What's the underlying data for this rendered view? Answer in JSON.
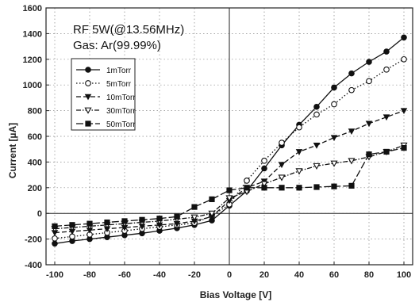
{
  "chart_data": {
    "type": "line",
    "xlabel": "Bias Voltage [V]",
    "ylabel": "Current [µA]",
    "xlim": [
      -105,
      105
    ],
    "ylim": [
      -400,
      1600
    ],
    "xticks": [
      -100,
      -80,
      -60,
      -40,
      -20,
      0,
      20,
      40,
      60,
      80,
      100
    ],
    "yticks": [
      -400,
      -200,
      0,
      200,
      400,
      600,
      800,
      1000,
      1200,
      1400,
      1600
    ],
    "grid": true,
    "legend_position": "upper-left",
    "annotations": [
      "RF 5W(@13.56MHz)",
      "Gas: Ar(99.99%)"
    ],
    "x": [
      -100,
      -90,
      -80,
      -70,
      -60,
      -50,
      -40,
      -30,
      -20,
      -10,
      0,
      10,
      20,
      30,
      40,
      50,
      60,
      70,
      80,
      90,
      100
    ],
    "series": [
      {
        "name": "1mTorr",
        "line_style": "solid",
        "marker": "filled-circle",
        "values": [
          -235,
          -215,
          -200,
          -185,
          -170,
          -155,
          -135,
          -115,
          -90,
          -55,
          60,
          175,
          350,
          530,
          690,
          830,
          980,
          1090,
          1180,
          1260,
          1370
        ]
      },
      {
        "name": "5mTorr",
        "line_style": "dotted",
        "marker": "open-circle",
        "values": [
          -195,
          -180,
          -165,
          -150,
          -135,
          -120,
          -105,
          -90,
          -75,
          -20,
          70,
          255,
          410,
          550,
          670,
          770,
          850,
          960,
          1030,
          1120,
          1200
        ]
      },
      {
        "name": "10mTorr",
        "line_style": "dashed",
        "marker": "filled-triangle-down",
        "values": [
          -150,
          -140,
          -130,
          -120,
          -110,
          -100,
          -90,
          -80,
          -60,
          -25,
          100,
          200,
          250,
          380,
          480,
          530,
          590,
          640,
          700,
          750,
          800
        ]
      },
      {
        "name": "30mTorr",
        "line_style": "dash-dot",
        "marker": "open-triangle-down",
        "values": [
          -120,
          -110,
          -100,
          -90,
          -80,
          -70,
          -60,
          -45,
          -30,
          0,
          120,
          170,
          230,
          280,
          330,
          370,
          390,
          410,
          440,
          480,
          530
        ]
      },
      {
        "name": "50mTorr",
        "line_style": "long-dash",
        "marker": "filled-square",
        "values": [
          -100,
          -90,
          -80,
          -70,
          -60,
          -50,
          -40,
          -25,
          50,
          110,
          180,
          200,
          200,
          200,
          200,
          205,
          210,
          215,
          460,
          480,
          510
        ]
      }
    ]
  }
}
